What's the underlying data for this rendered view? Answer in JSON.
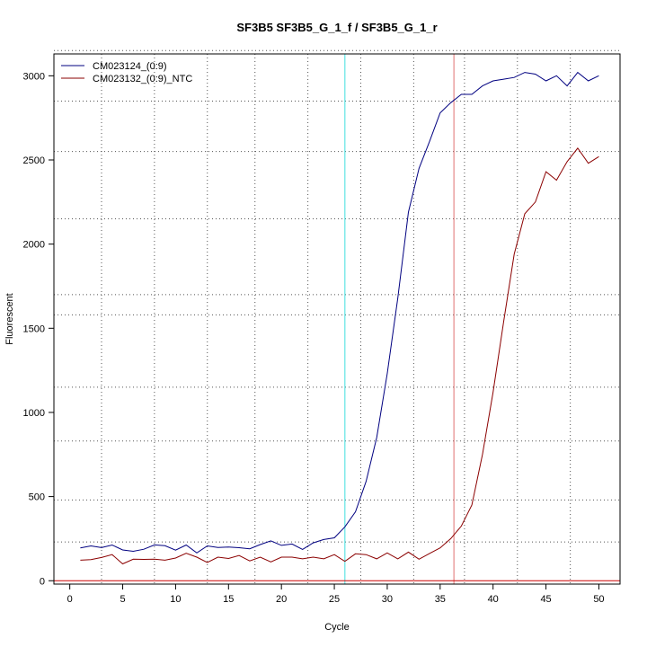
{
  "chart_data": {
    "type": "line",
    "title": "SF3B5  SF3B5_G_1_f / SF3B5_G_1_r",
    "xlabel": "Cycle",
    "ylabel": "Fluorescent",
    "xlim": [
      -1.5,
      52
    ],
    "ylim": [
      -20,
      3130
    ],
    "x_ticks": [
      0,
      5,
      10,
      15,
      20,
      25,
      30,
      35,
      40,
      45,
      50
    ],
    "y_ticks": [
      0,
      500,
      1000,
      1500,
      2000,
      2500,
      3000
    ],
    "grid": true,
    "grid_style": "dotted",
    "v_grid": [
      3,
      8,
      13,
      17.5,
      22.5,
      27.5,
      32.5,
      37.3,
      42.3,
      47.3
    ],
    "h_grid": [
      230,
      480,
      830,
      1150,
      1580,
      1700,
      2150,
      2550,
      2850,
      3150
    ],
    "legend_position": "top-left",
    "baseline": {
      "y": 0,
      "color": "#cc0000"
    },
    "threshold_lines": [
      {
        "x": 26,
        "color": "#40e0e0"
      },
      {
        "x": 36.3,
        "color": "#e07070"
      }
    ],
    "x": [
      1,
      2,
      3,
      4,
      5,
      6,
      7,
      8,
      9,
      10,
      11,
      12,
      13,
      14,
      15,
      16,
      17,
      18,
      19,
      20,
      21,
      22,
      23,
      24,
      25,
      26,
      27,
      28,
      29,
      30,
      31,
      32,
      33,
      34,
      35,
      36,
      37,
      38,
      39,
      40,
      41,
      42,
      43,
      44,
      45,
      46,
      47,
      48,
      49,
      50
    ],
    "series": [
      {
        "name": "CM023124_(0:9)",
        "color": "#000080",
        "values": [
          195,
          207,
          197,
          212,
          183,
          175,
          187,
          213,
          208,
          182,
          212,
          165,
          207,
          198,
          200,
          196,
          190,
          215,
          237,
          210,
          218,
          186,
          225,
          245,
          255,
          320,
          410,
          590,
          850,
          1230,
          1680,
          2190,
          2450,
          2610,
          2780,
          2840,
          2890,
          2890,
          2940,
          2970,
          2980,
          2990,
          3020,
          3010,
          2970,
          3000,
          2940,
          3020,
          2970,
          3000
        ]
      },
      {
        "name": "CM023132_(0:9)_NTC",
        "color": "#8b0000",
        "values": [
          122,
          125,
          138,
          155,
          100,
          128,
          127,
          128,
          122,
          135,
          163,
          140,
          108,
          140,
          132,
          150,
          118,
          140,
          112,
          140,
          140,
          130,
          140,
          130,
          155,
          115,
          160,
          155,
          130,
          165,
          130,
          170,
          128,
          162,
          195,
          250,
          325,
          450,
          750,
          1120,
          1540,
          1940,
          2180,
          2250,
          2430,
          2380,
          2490,
          2570,
          2480,
          2520
        ]
      }
    ]
  }
}
